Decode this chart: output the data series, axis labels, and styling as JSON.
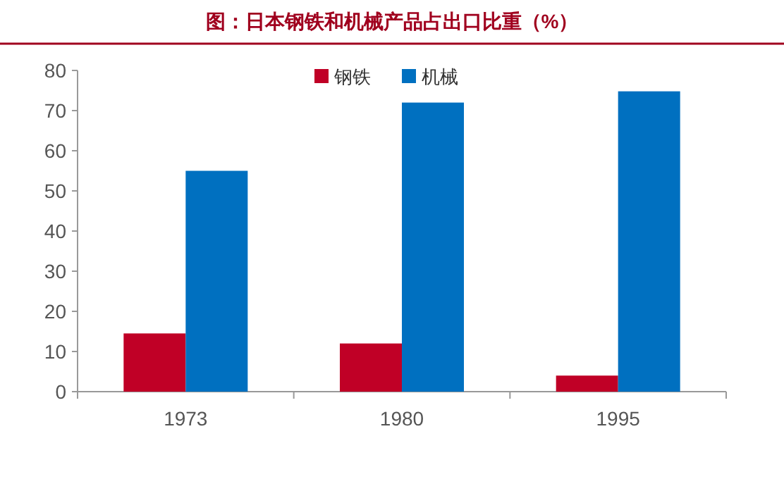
{
  "chart_data": {
    "type": "bar",
    "title": "图：日本钢铁和机械产品占出口比重（%）",
    "categories": [
      "1973",
      "1980",
      "1995"
    ],
    "series": [
      {
        "name": "钢铁",
        "color": "#c00026",
        "values": [
          14.5,
          12,
          4
        ]
      },
      {
        "name": "机械",
        "color": "#0070c0",
        "values": [
          55,
          72,
          74.8
        ]
      }
    ],
    "ylim": [
      0,
      80
    ],
    "yticks": [
      0,
      10,
      20,
      30,
      40,
      50,
      60,
      70,
      80
    ],
    "grid": false,
    "legend": "top"
  }
}
